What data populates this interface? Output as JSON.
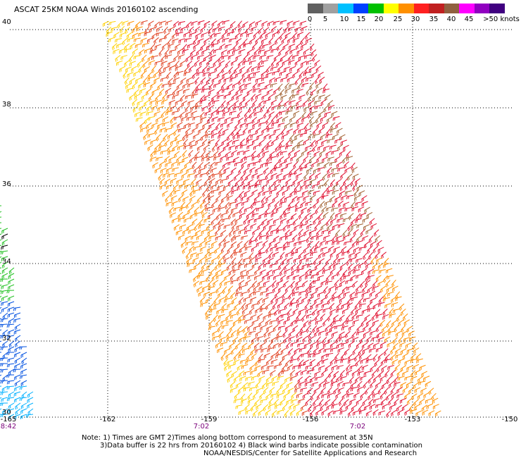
{
  "title": "ASCAT 25KM NOAA Winds 20160102 ascending",
  "colorbar": {
    "colors": [
      "#606060",
      "#a0a0a0",
      "#00c0ff",
      "#0040ff",
      "#00c000",
      "#ffff00",
      "#ff9000",
      "#ff2020",
      "#c02020",
      "#906040",
      "#ff00ff",
      "#9000c0",
      "#400080"
    ],
    "labels": [
      "0",
      "5",
      "10",
      "15",
      "20",
      "25",
      "30",
      "35",
      "40",
      "45",
      ">50 knots"
    ]
  },
  "lat_labels": [
    "40",
    "38",
    "36",
    "34",
    "32",
    "30"
  ],
  "lon_labels": [
    "-165",
    "-162",
    "-159",
    "-156",
    "-153",
    "-150"
  ],
  "time_labels": [
    "8:42",
    "7:02",
    "7:02"
  ],
  "notes": [
    "Note: 1) Times are GMT 2)Times along bottom correspond to measurement at 35N",
    "3)Data buffer is 22 hrs from 20160102 4) Black wind barbs indicate possible contamination",
    "NOAA/NESDIS/Center for Satellite Applications and Research"
  ],
  "swath_colors": {
    "edge": "#ffd000",
    "outer": "#ff9000",
    "mid": "#e04020",
    "core": "#e01030",
    "brown": "#a06030",
    "left_green": "#20c020",
    "left_blue": "#0050e0",
    "left_cyan": "#00b0ff",
    "contaminated": "#000000"
  }
}
